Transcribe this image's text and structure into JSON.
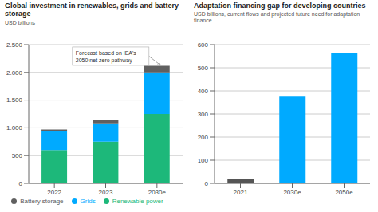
{
  "chart_data": [
    {
      "type": "bar",
      "title": "Global investment in renewables, grids and battery storage",
      "subtitle": "USD billions",
      "categories": [
        "2022",
        "2023",
        "2030e"
      ],
      "series": [
        {
          "name": "Renewable power",
          "color": "#1db87a",
          "values": [
            600,
            750,
            1250
          ]
        },
        {
          "name": "Grids",
          "color": "#00aaff",
          "values": [
            350,
            330,
            750
          ]
        },
        {
          "name": "Battery storage",
          "color": "#606060",
          "values": [
            20,
            60,
            120
          ]
        }
      ],
      "stacked": true,
      "ylim": [
        0,
        2500
      ],
      "yticks": [
        0,
        500,
        {
          "value": 1000,
          "label": "1.000"
        },
        {
          "value": 1500,
          "label": "1.500"
        },
        {
          "value": 2000,
          "label": "2.000"
        },
        {
          "value": 2500,
          "label": "2.500"
        }
      ],
      "grid": true,
      "legend": "bottom",
      "annotation": "Forecast based on IEA's\n2050 net zero pathway"
    },
    {
      "type": "bar",
      "title": "Adaptation financing gap for developing countries",
      "subtitle": "USD billions, current flows and projected future need for adaptation finance",
      "categories": [
        "2021",
        "2030e",
        "2050e"
      ],
      "values": [
        20,
        375,
        565
      ],
      "colors": [
        "#555555",
        "#00aaff",
        "#00aaff"
      ],
      "ylim": [
        0,
        600
      ],
      "yticks": [
        0,
        100,
        200,
        300,
        400,
        500,
        600
      ],
      "grid": true
    }
  ]
}
